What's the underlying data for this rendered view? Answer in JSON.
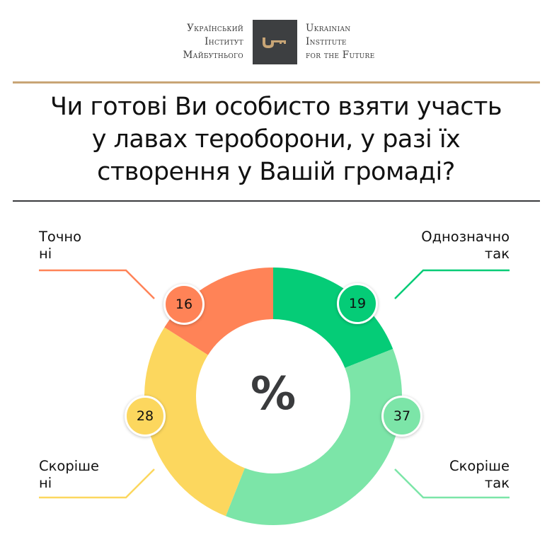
{
  "logo": {
    "ua_lines": [
      "Український",
      "Інститут",
      "Майбутнього"
    ],
    "en_lines": [
      "Ukrainian",
      "Institute",
      "for the Future"
    ],
    "icon": "key-icon",
    "box_color": "#3d3f41",
    "key_color": "#c8a576"
  },
  "question": {
    "lines": [
      "Чи готові Ви особисто взяти участь",
      "у лавах тероборони, у разі їх",
      "створення у Вашій громаді?"
    ]
  },
  "colors": {
    "rule_top": "#c8a576",
    "rule_bottom": "#3a3b3d",
    "definitely_yes": "#05cc77",
    "rather_yes": "#7ce5a8",
    "rather_no": "#fcd75e",
    "definitely_no": "#ff8357"
  },
  "chart_data": {
    "type": "pie",
    "subtype": "donut",
    "title": "Чи готові Ви особисто взяти участь у лавах тероборони, у разі їх створення у Вашій громаді?",
    "center_label": "%",
    "unit": "%",
    "categories": [
      "Однозначно так",
      "Скоріше так",
      "Скоріше ні",
      "Точно ні"
    ],
    "values": [
      19,
      37,
      28,
      16
    ],
    "colors": [
      "#05cc77",
      "#7ce5a8",
      "#fcd75e",
      "#ff8357"
    ],
    "start_angle": "12 o'clock, clockwise",
    "legend": "callout labels at four corners"
  },
  "labels": {
    "definitely_yes": [
      "Однозначно",
      "так"
    ],
    "rather_yes": [
      "Скоріше",
      "так"
    ],
    "rather_no": [
      "Скоріше",
      "ні"
    ],
    "definitely_no": [
      "Точно",
      "ні"
    ]
  },
  "badges": {
    "definitely_yes": "19",
    "rather_yes": "37",
    "rather_no": "28",
    "definitely_no": "16"
  },
  "center_symbol": "%"
}
